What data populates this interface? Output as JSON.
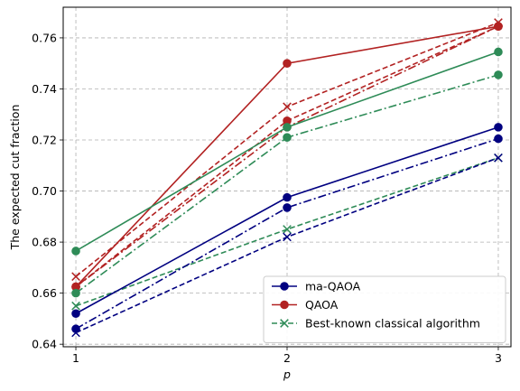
{
  "chart_data": {
    "type": "line",
    "xlabel": "p",
    "ylabel": "The expected cut fraction",
    "x": [
      1,
      2,
      3
    ],
    "x_ticks": [
      "1",
      "2",
      "3"
    ],
    "xlim": [
      0.94,
      3.06
    ],
    "ylim": [
      0.639,
      0.772
    ],
    "y_ticks": [
      0.64,
      0.66,
      0.68,
      0.7,
      0.72,
      0.74,
      0.76
    ],
    "y_tick_labels": [
      "0.64",
      "0.66",
      "0.68",
      "0.70",
      "0.72",
      "0.74",
      "0.76"
    ],
    "grid": true,
    "legend_position": "lower-right",
    "legend": [
      {
        "label": "ma-QAOA",
        "color": "#000080",
        "dash": "solid",
        "marker": "circle"
      },
      {
        "label": "QAOA",
        "color": "#b22222",
        "dash": "solid",
        "marker": "circle"
      },
      {
        "label": "Best-known classical algorithm",
        "color": "#2e8b57",
        "dash": "dashed",
        "marker": "x"
      }
    ],
    "series": [
      {
        "color": "#b22222",
        "dash": "solid",
        "marker": "circle",
        "values": [
          0.6625,
          0.75,
          0.7645
        ]
      },
      {
        "color": "#b22222",
        "dash": "dashed",
        "marker": "circle",
        "values": [
          0.6625,
          0.7275,
          0.7645
        ]
      },
      {
        "color": "#b22222",
        "dash": "dashdot",
        "marker": "circle",
        "values": [
          0.6625,
          0.725,
          0.7645
        ]
      },
      {
        "color": "#b22222",
        "dash": "dashed",
        "marker": "x",
        "values": [
          0.6665,
          0.733,
          0.766
        ]
      },
      {
        "color": "#2e8b57",
        "dash": "solid",
        "marker": "circle",
        "values": [
          0.6765,
          0.725,
          0.7545
        ]
      },
      {
        "color": "#2e8b57",
        "dash": "dashdot",
        "marker": "circle",
        "values": [
          0.66,
          0.721,
          0.7455
        ]
      },
      {
        "color": "#2e8b57",
        "dash": "dashed",
        "marker": "x",
        "values": [
          0.655,
          0.685,
          0.713
        ]
      },
      {
        "color": "#000080",
        "dash": "solid",
        "marker": "circle",
        "values": [
          0.652,
          0.6975,
          0.725
        ]
      },
      {
        "color": "#000080",
        "dash": "dashdot",
        "marker": "circle",
        "values": [
          0.646,
          0.6935,
          0.7205
        ]
      },
      {
        "color": "#000080",
        "dash": "dashed",
        "marker": "x",
        "values": [
          0.6445,
          0.682,
          0.713
        ]
      }
    ]
  }
}
